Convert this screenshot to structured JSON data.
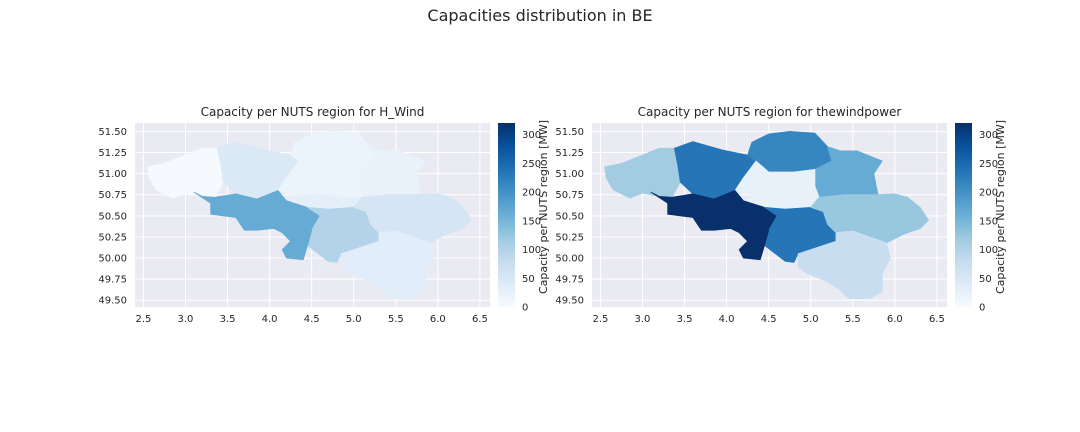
{
  "suptitle": "Capacities distribution in BE",
  "colormap": "Blues",
  "chart_data": [
    {
      "type": "choropleth",
      "title": "Capacity per NUTS region for H_Wind",
      "xlim": [
        2.4,
        6.62
      ],
      "ylim": [
        49.42,
        51.6
      ],
      "xticks": [
        "2.5",
        "3.0",
        "3.5",
        "4.0",
        "4.5",
        "5.0",
        "5.5",
        "6.0",
        "6.5"
      ],
      "yticks": [
        "49.50",
        "49.75",
        "50.00",
        "50.25",
        "50.50",
        "50.75",
        "51.00",
        "51.25",
        "51.50"
      ],
      "colorbar": {
        "label": "Capacity per NUTS region [MW]",
        "min": 0,
        "max": 320,
        "ticks": [
          "0",
          "50",
          "100",
          "150",
          "200",
          "250",
          "300"
        ]
      },
      "regions": [
        {
          "id": "west-flanders",
          "value": 2
        },
        {
          "id": "east-flanders",
          "value": 45
        },
        {
          "id": "antwerp",
          "value": 18
        },
        {
          "id": "limburg",
          "value": 22
        },
        {
          "id": "flemish-brabant",
          "value": 18
        },
        {
          "id": "brussels",
          "value": 20
        },
        {
          "id": "walloon-brabant",
          "value": 30
        },
        {
          "id": "hainaut",
          "value": 165
        },
        {
          "id": "namur",
          "value": 100
        },
        {
          "id": "liege",
          "value": 55
        },
        {
          "id": "luxembourg",
          "value": 35
        },
        {
          "id": "hainaut-south",
          "value": 165
        }
      ]
    },
    {
      "type": "choropleth",
      "title": "Capacity per NUTS region for thewindpower",
      "xlim": [
        2.4,
        6.62
      ],
      "ylim": [
        49.42,
        51.6
      ],
      "xticks": [
        "2.5",
        "3.0",
        "3.5",
        "4.0",
        "4.5",
        "5.0",
        "5.5",
        "6.0",
        "6.5"
      ],
      "yticks": [
        "49.50",
        "49.75",
        "50.00",
        "50.25",
        "50.50",
        "50.75",
        "51.00",
        "51.25",
        "51.50"
      ],
      "colorbar": {
        "label": "Capacity per NUTS region [MW]",
        "min": 0,
        "max": 320,
        "ticks": [
          "0",
          "50",
          "100",
          "150",
          "200",
          "250",
          "300"
        ]
      },
      "regions": [
        {
          "id": "west-flanders",
          "value": 115
        },
        {
          "id": "east-flanders",
          "value": 235
        },
        {
          "id": "antwerp",
          "value": 215
        },
        {
          "id": "limburg",
          "value": 165
        },
        {
          "id": "flemish-brabant",
          "value": 25
        },
        {
          "id": "brussels",
          "value": 25
        },
        {
          "id": "walloon-brabant",
          "value": 25
        },
        {
          "id": "hainaut",
          "value": 320
        },
        {
          "id": "namur",
          "value": 235
        },
        {
          "id": "liege",
          "value": 125
        },
        {
          "id": "luxembourg",
          "value": 75
        },
        {
          "id": "hainaut-south",
          "value": 320
        }
      ]
    }
  ]
}
